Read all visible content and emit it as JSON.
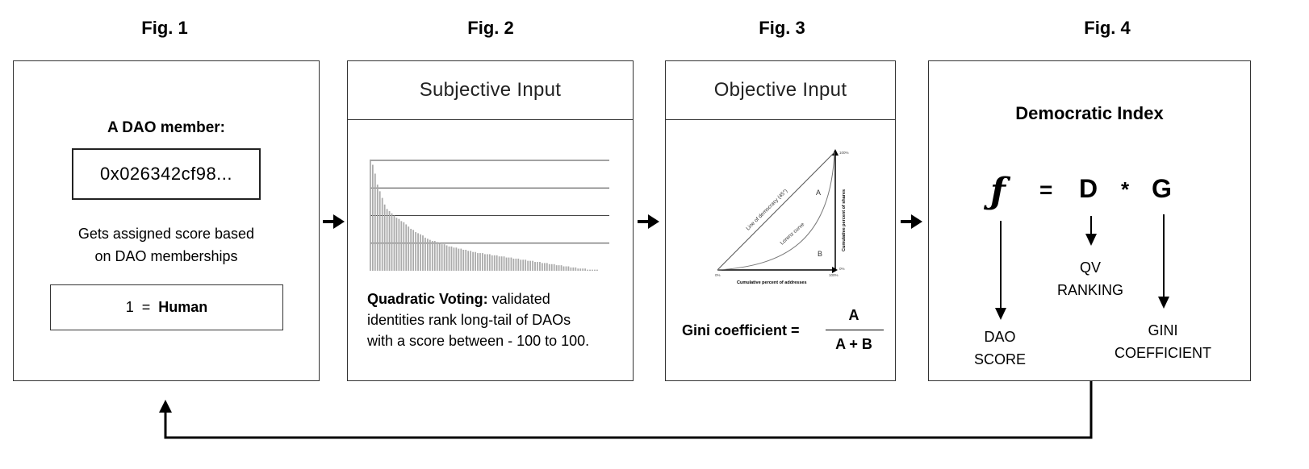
{
  "figures": {
    "fig1": {
      "title": "Fig. 1",
      "heading": "A DAO member:",
      "address": "0x026342cf98...",
      "desc_line1": "Gets assigned score based",
      "desc_line2": "on DAO memberships",
      "eq_left": "1",
      "eq_op": "=",
      "eq_right": "Human"
    },
    "fig2": {
      "title": "Fig. 2",
      "header": "Subjective Input",
      "bold_label": "Quadratic Voting:",
      "text_line1": " validated",
      "text_line2": "identities rank long-tail of DAOs",
      "text_line3": "with a score between - 100 to 100."
    },
    "fig3": {
      "title": "Fig. 3",
      "header": "Objective Input",
      "chart_labels": {
        "line_of_democracy": "Line of democracy (45°)",
        "lorenz_curve": "Lorenz curve",
        "region_a": "A",
        "region_b": "B",
        "x_axis": "Cumulative percent of addresses",
        "y_axis": "Cumulative percent of shares",
        "x0": "0%",
        "x100": "100%",
        "y0": "0%",
        "y100": "100%"
      },
      "gini_label": "Gini coefficient =",
      "numerator": "A",
      "denominator": "A + B"
    },
    "fig4": {
      "title": "Fig. 4",
      "heading": "Democratic Index",
      "f": "ƒ",
      "eq": "=",
      "d": "D",
      "star": "*",
      "g": "G",
      "qv_line1": "QV",
      "qv_line2": "RANKING",
      "dao_line1": "DAO",
      "dao_line2": "SCORE",
      "gini_line1": "GINI",
      "gini_line2": "COEFFICIENT"
    }
  },
  "bar_chart_values": [
    100,
    96,
    88,
    78,
    72,
    66,
    60,
    56,
    54,
    52,
    50,
    48,
    47,
    45,
    44,
    42,
    40,
    38,
    37,
    35,
    34,
    33,
    32,
    30,
    29,
    28,
    27,
    27,
    26,
    25,
    24,
    24,
    23,
    22,
    22,
    21,
    21,
    20,
    20,
    19,
    19,
    18,
    18,
    17,
    17,
    16,
    16,
    16,
    15,
    15,
    15,
    14,
    14,
    14,
    13,
    13,
    13,
    12,
    12,
    12,
    11,
    11,
    11,
    10,
    10,
    10,
    9,
    9,
    9,
    8,
    8,
    8,
    7,
    7,
    7,
    6,
    6,
    6,
    5,
    5,
    5,
    4,
    4,
    4,
    3,
    3,
    3,
    2,
    2,
    2,
    2,
    1,
    1,
    1,
    1,
    1
  ],
  "colors": {
    "border": "#333333",
    "bars": "#aaaaaa",
    "gridlines": "#444444",
    "curve": "#777777"
  }
}
